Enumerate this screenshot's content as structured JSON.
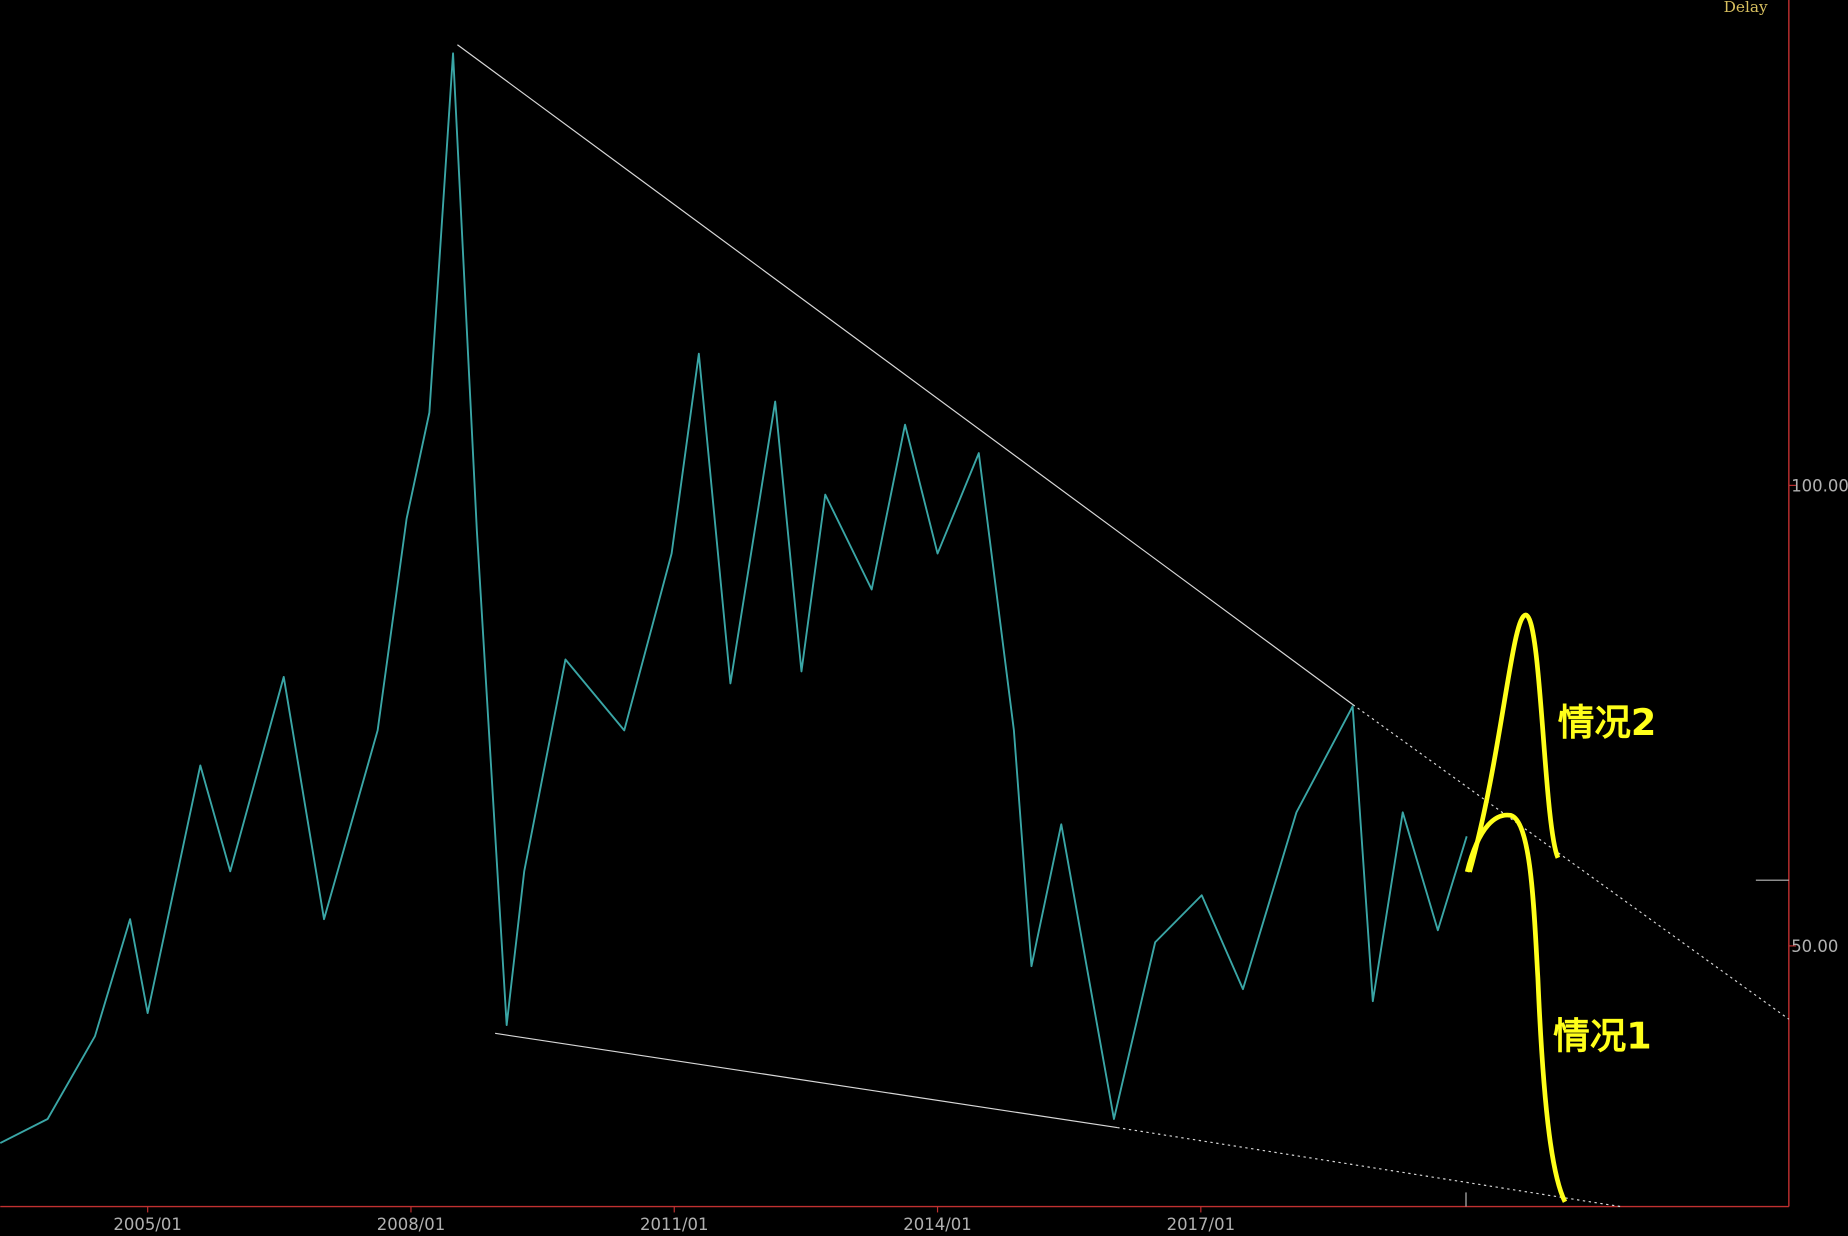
{
  "chart_data": {
    "type": "line",
    "status": "Delay",
    "annotations": [
      "情况2",
      "情况1"
    ],
    "x": [
      2003.32,
      2003.86,
      2004.4,
      2004.8,
      2005.0,
      2005.6,
      2005.94,
      2006.55,
      2007.01,
      2007.62,
      2007.95,
      2008.21,
      2008.48,
      2008.75,
      2009.09,
      2009.29,
      2009.76,
      2010.43,
      2010.97,
      2011.28,
      2011.64,
      2012.15,
      2012.45,
      2012.72,
      2013.25,
      2013.63,
      2014.0,
      2014.47,
      2014.87,
      2015.07,
      2015.41,
      2016.01,
      2016.48,
      2017.01,
      2017.48,
      2018.09,
      2018.73,
      2018.96,
      2019.3,
      2019.7,
      2020.03
    ],
    "values": [
      28.6,
      31.2,
      40.2,
      52.9,
      42.7,
      69.6,
      58.1,
      79.2,
      52.9,
      73.4,
      96.4,
      107.9,
      146.9,
      95.1,
      41.4,
      58.1,
      81.1,
      73.4,
      92.6,
      114.3,
      78.5,
      109.1,
      79.8,
      99.0,
      88.7,
      106.6,
      92.6,
      103.5,
      73.4,
      47.8,
      63.2,
      31.2,
      50.4,
      55.5,
      45.3,
      64.5,
      76.0,
      44.0,
      64.5,
      51.7,
      61.9
    ],
    "color": "#3aa6a6",
    "xlim": [
      2003.32,
      2023.7
    ],
    "xticks": [
      {
        "value": 2005,
        "label": "2005/01"
      },
      {
        "value": 2008,
        "label": "2008/01"
      },
      {
        "value": 2011,
        "label": "2011/01"
      },
      {
        "value": 2014,
        "label": "2014/01"
      },
      {
        "value": 2017,
        "label": "2017/01"
      }
    ],
    "ylim": [
      21.7,
      152.7
    ],
    "yticks": [
      {
        "value": 50,
        "label": "50.00"
      },
      {
        "value": 100,
        "label": "100.00"
      }
    ]
  }
}
